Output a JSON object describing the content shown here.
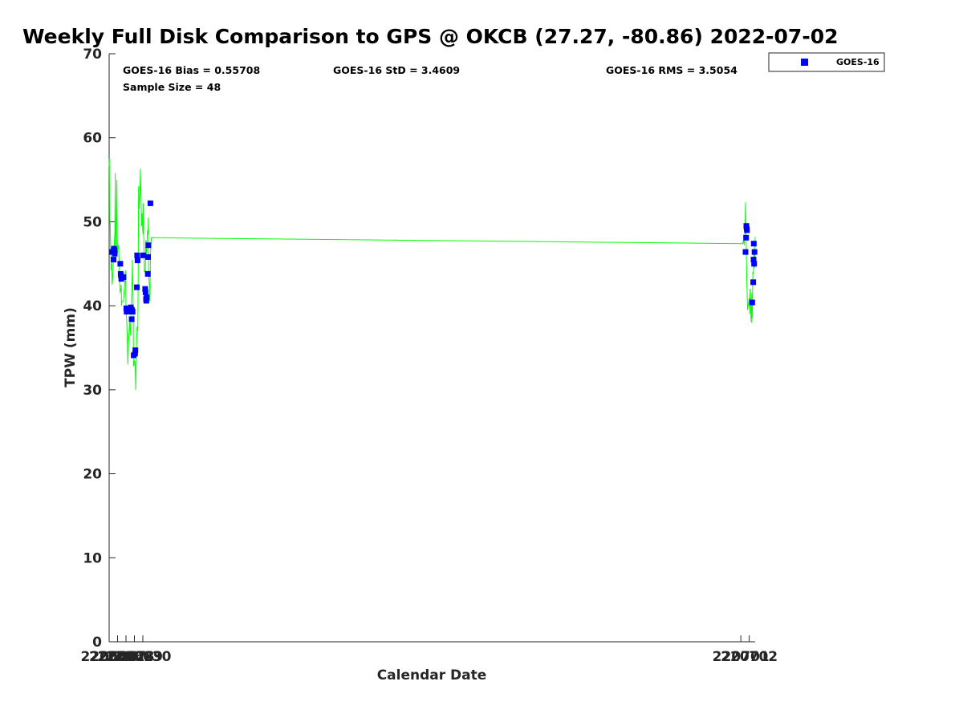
{
  "chart_data": {
    "type": "line",
    "title": "Weekly Full Disk Comparison to GPS @ OKCB (27.27, -80.86) 2022-07-02",
    "xlabel": "Calendar Date",
    "ylabel": "TPW (mm)",
    "xlim": [
      220626,
      220702.7
    ],
    "ylim": [
      0,
      70
    ],
    "xticks": [
      220626,
      220627,
      220628,
      220629,
      220630,
      220701,
      220702
    ],
    "xtick_labels": [
      "220626",
      "220627",
      "220628",
      "220629",
      "220630",
      "220701",
      "220702"
    ],
    "yticks": [
      0,
      10,
      20,
      30,
      40,
      50,
      60,
      70
    ],
    "ytick_labels": [
      "0",
      "10",
      "20",
      "30",
      "40",
      "50",
      "60",
      "70"
    ],
    "grid": false,
    "legend_position": "outside-top-right",
    "stats": {
      "bias": "GOES-16 Bias = 0.55708",
      "std": "GOES-16 StD = 3.4609",
      "rms": "GOES-16 RMS = 3.5054",
      "sample_size": "Sample Size = 48"
    },
    "series": [
      {
        "style": "line",
        "color": "#00ff00",
        "x": [
          220626.0,
          220626.03,
          220626.08,
          220626.12,
          220626.25,
          220626.3,
          220626.35,
          220626.4,
          220626.45,
          220626.52,
          220626.55,
          220626.58,
          220626.62,
          220626.68,
          220626.72,
          220626.76,
          220626.8,
          220626.84,
          220626.88,
          220626.92,
          220626.96,
          220627.0,
          220627.04,
          220627.08,
          220627.12,
          220627.2,
          220627.3,
          220627.34,
          220627.38,
          220627.44,
          220627.47,
          220627.52,
          220627.7,
          220627.8,
          220627.94,
          220628.0,
          220628.1,
          220628.2,
          220628.22,
          220628.3,
          220628.38,
          220628.43,
          220628.48,
          220628.52,
          220628.56,
          220628.62,
          220628.66,
          220628.72,
          220628.76,
          220628.85,
          220628.9,
          220628.95,
          220629.05,
          220629.1,
          220629.15,
          220629.25,
          220629.32,
          220629.4,
          220629.45,
          220629.5,
          220629.58,
          220629.66,
          220629.72,
          220629.8,
          220629.86,
          220629.92,
          220629.98,
          220630.03,
          220630.06,
          220630.09,
          220630.12,
          220630.18,
          220630.25,
          220630.3,
          220630.35,
          220630.4,
          220630.45,
          220630.5,
          220630.55,
          220630.6,
          220630.62,
          220630.66,
          220630.7,
          220630.8,
          220630.83,
          220630.88,
          220630.91,
          220631.0,
          220701.2,
          220701.3,
          220701.4,
          220701.5,
          220701.56,
          220701.62,
          220701.7,
          220701.8,
          220702.0,
          220702.05,
          220702.1,
          220702.2,
          220702.25,
          220702.3,
          220702.36,
          220702.42,
          220702.5,
          220702.55,
          220702.62,
          220702.68,
          220702.7
        ],
        "y": [
          56.6,
          57.5,
          50.0,
          49.8,
          44.2,
          45.0,
          42.5,
          43.0,
          44.0,
          46.0,
          47.0,
          46.5,
          47.5,
          48.5,
          55.8,
          47.0,
          46.5,
          49.0,
          52.0,
          55.0,
          48.0,
          46.3,
          47.0,
          47.2,
          47.0,
          45.0,
          41.5,
          42.0,
          41.8,
          42.5,
          40.0,
          40.5,
          40.5,
          42.0,
          44.2,
          40.0,
          38.0,
          34.0,
          33.0,
          35.5,
          37.0,
          38.0,
          37.5,
          36.5,
          38.5,
          39.5,
          41.0,
          42.5,
          45.5,
          40.0,
          32.8,
          33.2,
          33.5,
          33.0,
          30.0,
          35.0,
          37.5,
          37.0,
          43.0,
          54.2,
          51.5,
          53.5,
          56.3,
          52.0,
          49.5,
          51.0,
          49.0,
          48.5,
          52.2,
          49.0,
          48.0,
          44.0,
          44.3,
          44.0,
          47.8,
          47.5,
          45.6,
          47.5,
          49.0,
          48.8,
          48.5,
          50.5,
          43.6,
          42.0,
          40.5,
          43.5,
          46.0,
          48.1,
          47.4,
          47.8,
          47.2,
          49.0,
          52.3,
          48.0,
          43.5,
          39.5,
          41.0,
          39.0,
          42.0,
          38.5,
          38.0,
          41.5,
          38.5,
          44.0,
          43.8,
          46.5,
          44.5,
          47.5,
          48.2
        ]
      },
      {
        "name": "GOES-16",
        "style": "markers",
        "color": "#0000ff",
        "x": [
          220626.38,
          220626.52,
          220626.55,
          220626.58,
          220626.63,
          220626.67,
          220627.32,
          220627.37,
          220627.41,
          220627.45,
          220627.71,
          220628.04,
          220628.08,
          220628.33,
          220628.47,
          220628.58,
          220628.62,
          220628.68,
          220628.71,
          220628.74,
          220628.78,
          220628.92,
          220629.08,
          220629.12,
          220629.3,
          220629.33,
          220629.37,
          220630.04,
          220630.28,
          220630.33,
          220630.38,
          220630.41,
          220630.46,
          220630.59,
          220630.62,
          220630.66,
          220630.9,
          220701.56,
          220701.62,
          220701.65,
          220701.69,
          220701.73,
          220702.35,
          220702.47,
          220702.51,
          220702.54,
          220702.58,
          220702.62
        ],
        "y": [
          46.4,
          45.5,
          46.6,
          46.8,
          46.6,
          46.2,
          45.0,
          43.8,
          43.6,
          43.2,
          43.4,
          39.7,
          39.3,
          39.5,
          39.3,
          39.8,
          39.5,
          38.4,
          39.5,
          39.3,
          39.3,
          34.1,
          34.3,
          34.7,
          42.2,
          46.0,
          45.4,
          46.0,
          42.0,
          41.6,
          40.8,
          40.6,
          41.0,
          43.8,
          45.8,
          47.2,
          52.2,
          46.4,
          48.1,
          49.5,
          49.2,
          49.0,
          40.4,
          42.8,
          45.5,
          47.4,
          45.0,
          46.4
        ]
      }
    ]
  }
}
